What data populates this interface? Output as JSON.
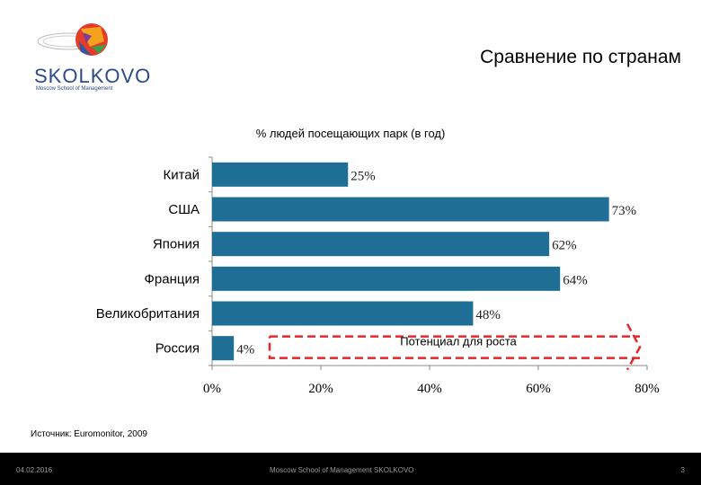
{
  "header": {
    "title": "Сравнение по странам",
    "logo_text": "SKOLKOVO",
    "logo_subtext": "Moscow School of Management"
  },
  "chart_data": {
    "type": "bar",
    "orientation": "horizontal",
    "title": "% людей посещающих парк (в год)",
    "categories": [
      "Китай",
      "США",
      "Япония",
      "Франция",
      "Великобритания",
      "Россия"
    ],
    "values": [
      25,
      73,
      62,
      64,
      48,
      4
    ],
    "value_labels": [
      "25%",
      "73%",
      "62%",
      "64%",
      "48%",
      "4%"
    ],
    "xlim": [
      0,
      80
    ],
    "xticks": [
      0,
      20,
      40,
      60,
      80
    ],
    "xtick_labels": [
      "0%",
      "20%",
      "40%",
      "60%",
      "80%"
    ],
    "grid": false,
    "bar_color": "#1f6e96",
    "annotation": {
      "text": "Потенциал для роста",
      "from": 4,
      "to": 80,
      "color": "#e0282a"
    }
  },
  "source_text": "Источник: Euromonitor, 2009",
  "footer": {
    "date": "04.02.2016",
    "center": "Moscow School of Management SKOLKOVO",
    "page": "3"
  }
}
